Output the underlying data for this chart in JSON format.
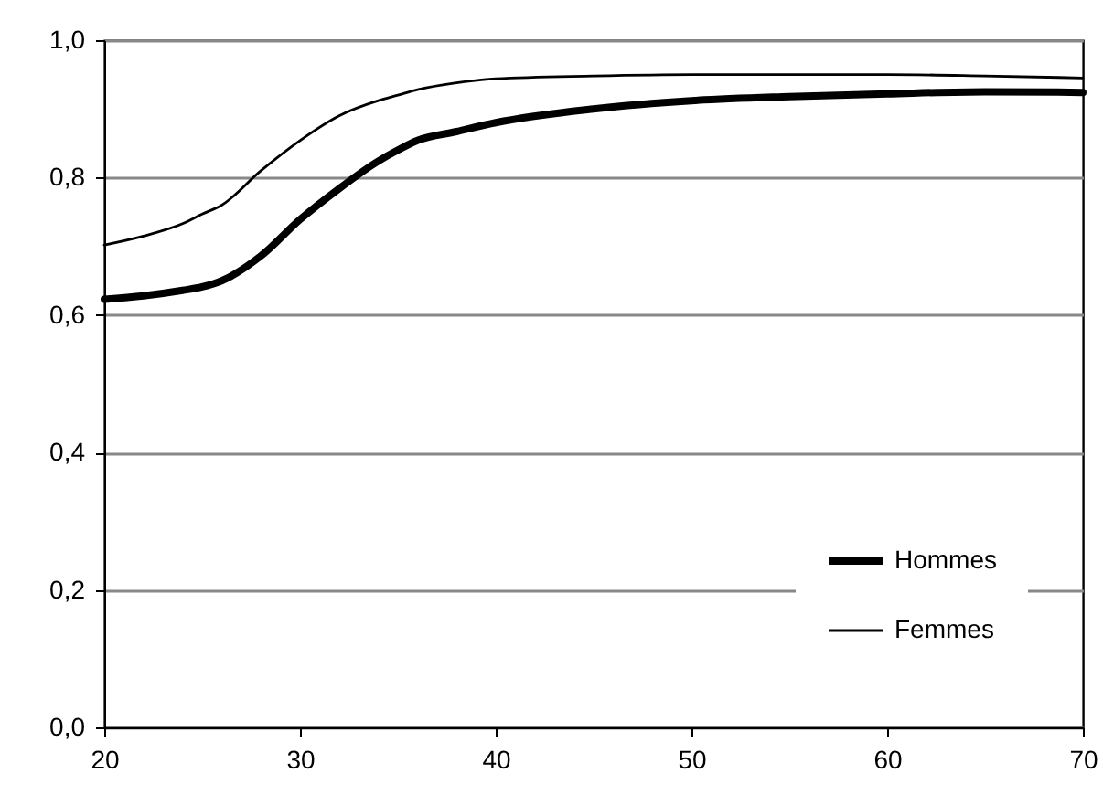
{
  "chart_data": {
    "type": "line",
    "x": [
      20,
      22,
      24,
      25,
      26,
      28,
      30,
      32,
      34,
      35,
      36,
      38,
      40,
      45,
      50,
      55,
      60,
      65,
      70
    ],
    "series": [
      {
        "name": "Hommes",
        "color": "#000000",
        "values": [
          0.623,
          0.628,
          0.636,
          0.641,
          0.65,
          0.686,
          0.739,
          0.784,
          0.824,
          0.84,
          0.854,
          0.867,
          0.88,
          0.9,
          0.912,
          0.918,
          0.922,
          0.925,
          0.924
        ]
      },
      {
        "name": "Femmes",
        "color": "#000000",
        "values": [
          0.702,
          0.715,
          0.733,
          0.747,
          0.76,
          0.81,
          0.854,
          0.89,
          0.912,
          0.92,
          0.928,
          0.938,
          0.944,
          0.948,
          0.95,
          0.95,
          0.95,
          0.948,
          0.945
        ]
      }
    ],
    "xlim": [
      20,
      70
    ],
    "xticks": [
      20,
      30,
      40,
      50,
      60,
      70
    ],
    "ylim": [
      0,
      1
    ],
    "yticks": [
      {
        "value": 0,
        "label": "0,0"
      },
      {
        "value": 0.2,
        "label": "0,2"
      },
      {
        "value": 0.4,
        "label": "0,4"
      },
      {
        "value": 0.6,
        "label": "0,6"
      },
      {
        "value": 0.8,
        "label": "0,8"
      },
      {
        "value": 1,
        "label": "1,0"
      }
    ],
    "grid": "y",
    "legend": "bottom right",
    "marker": "none",
    "line_style": "solid"
  }
}
